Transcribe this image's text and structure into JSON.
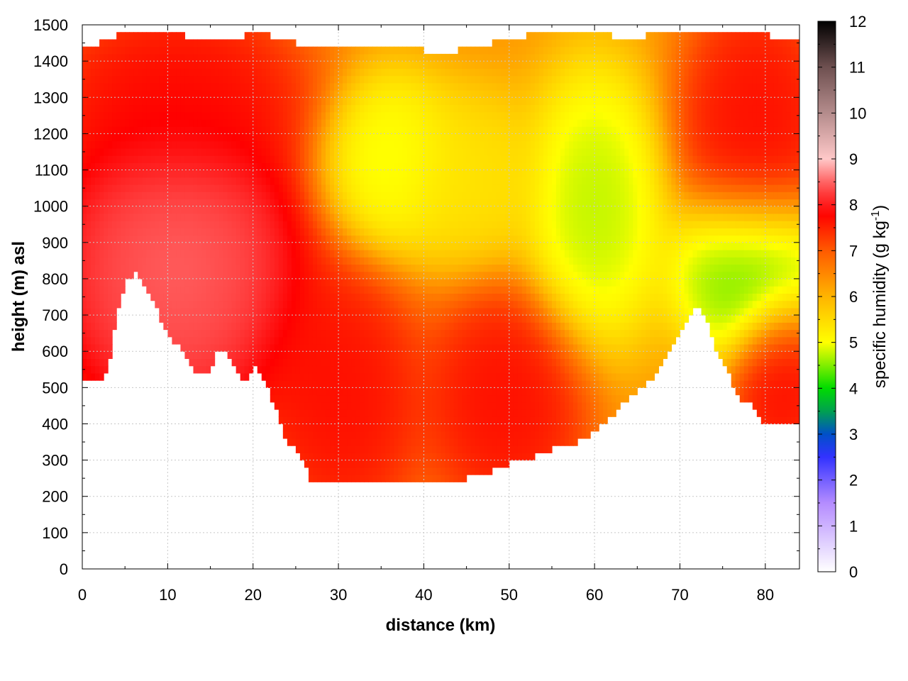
{
  "chart_data": {
    "type": "heatmap",
    "title": "",
    "xlabel": "distance (km)",
    "ylabel": "height (m) asl",
    "colorbar_label_main": "specific humidity (g kg",
    "colorbar_label_sup": "-1",
    "colorbar_label_end": ")",
    "xlim": [
      0,
      84
    ],
    "ylim": [
      0,
      1500
    ],
    "zlim": [
      0,
      12
    ],
    "x_ticks": [
      0,
      10,
      20,
      30,
      40,
      50,
      60,
      70,
      80
    ],
    "x_tick_labels": [
      "0",
      "10",
      "20",
      "30",
      "40",
      "50",
      "60",
      "70",
      "80"
    ],
    "y_ticks": [
      0,
      100,
      200,
      300,
      400,
      500,
      600,
      700,
      800,
      900,
      1000,
      1100,
      1200,
      1300,
      1400,
      1500
    ],
    "y_tick_labels": [
      "0",
      "100",
      "200",
      "300",
      "400",
      "500",
      "600",
      "700",
      "800",
      "900",
      "1000",
      "1100",
      "1200",
      "1300",
      "1400",
      "1500"
    ],
    "z_ticks": [
      0,
      1,
      2,
      3,
      4,
      5,
      6,
      7,
      8,
      9,
      10,
      11,
      12
    ],
    "z_tick_labels": [
      "0",
      "1",
      "2",
      "3",
      "4",
      "5",
      "6",
      "7",
      "8",
      "9",
      "10",
      "11",
      "12"
    ],
    "grid": true,
    "colormap": [
      {
        "value": 0,
        "color": "#ffffff"
      },
      {
        "value": 1.5,
        "color": "#b48cff"
      },
      {
        "value": 2.5,
        "color": "#3232ff"
      },
      {
        "value": 3,
        "color": "#0050c8"
      },
      {
        "value": 3.5,
        "color": "#00a050"
      },
      {
        "value": 4,
        "color": "#00dc00"
      },
      {
        "value": 5,
        "color": "#ffff00"
      },
      {
        "value": 6,
        "color": "#ffb400"
      },
      {
        "value": 7,
        "color": "#ff5a00"
      },
      {
        "value": 7.8,
        "color": "#ff0000"
      },
      {
        "value": 8.4,
        "color": "#ff5050"
      },
      {
        "value": 9,
        "color": "#ffc8c8"
      },
      {
        "value": 10,
        "color": "#b48c8c"
      },
      {
        "value": 11,
        "color": "#6e5050"
      },
      {
        "value": 12,
        "color": "#000000"
      }
    ],
    "ground_profile": {
      "x": [
        0,
        1,
        2,
        3,
        4,
        5,
        6,
        7,
        8,
        9,
        10,
        11,
        12,
        13,
        14,
        15,
        16,
        17,
        18,
        19,
        20,
        21,
        22,
        23,
        24,
        25,
        26,
        27,
        28,
        30,
        32,
        34,
        36,
        38,
        40,
        42,
        44,
        46,
        48,
        50,
        52,
        54,
        56,
        58,
        60,
        62,
        64,
        66,
        68,
        70,
        71,
        72,
        73,
        74,
        75,
        76,
        77,
        78,
        79,
        80,
        81,
        82,
        83,
        84
      ],
      "height": [
        515,
        530,
        512,
        550,
        700,
        790,
        815,
        800,
        760,
        700,
        640,
        620,
        590,
        550,
        530,
        545,
        610,
        595,
        540,
        510,
        560,
        540,
        480,
        420,
        350,
        325,
        290,
        235,
        240,
        250,
        250,
        240,
        238,
        238,
        238,
        235,
        245,
        255,
        270,
        290,
        300,
        320,
        340,
        350,
        380,
        420,
        470,
        510,
        560,
        650,
        700,
        720,
        690,
        620,
        570,
        520,
        470,
        460,
        430,
        400,
        395,
        400,
        400,
        410
      ]
    },
    "top_profile": {
      "x": [
        0,
        2,
        4,
        6,
        8,
        10,
        12,
        14,
        16,
        18,
        20,
        22,
        24,
        26,
        28,
        30,
        32,
        34,
        36,
        38,
        40,
        42,
        44,
        46,
        48,
        50,
        52,
        54,
        56,
        58,
        60,
        62,
        64,
        66,
        68,
        70,
        72,
        74,
        76,
        78,
        80,
        82,
        84
      ],
      "height": [
        1440,
        1450,
        1470,
        1490,
        1480,
        1470,
        1470,
        1460,
        1470,
        1460,
        1480,
        1470,
        1460,
        1440,
        1430,
        1435,
        1440,
        1435,
        1430,
        1430,
        1430,
        1425,
        1430,
        1440,
        1450,
        1460,
        1470,
        1480,
        1475,
        1480,
        1470,
        1470,
        1460,
        1470,
        1470,
        1480,
        1490,
        1470,
        1480,
        1470,
        1480,
        1450,
        1460
      ]
    },
    "features": [
      {
        "name": "dry-upper-left",
        "x": [
          0,
          22
        ],
        "height": [
          1150,
          1450
        ],
        "value": 7.8
      },
      {
        "name": "moist-plume-left",
        "x": [
          0,
          22
        ],
        "height": [
          500,
          1150
        ],
        "value": 8.7
      },
      {
        "name": "moist-core-center-left",
        "x": [
          25,
          36
        ],
        "height": [
          230,
          700
        ],
        "value": 7.8
      },
      {
        "name": "moist-core-center",
        "x": [
          44,
          55
        ],
        "height": [
          270,
          650
        ],
        "value": 7.8
      },
      {
        "name": "dry-pocket-center",
        "x": [
          32,
          40
        ],
        "height": [
          1000,
          1250
        ],
        "value": 4.8
      },
      {
        "name": "dry-pocket-center-2",
        "x": [
          40,
          50
        ],
        "height": [
          950,
          1200
        ],
        "value": 5.3
      },
      {
        "name": "dry-pocket-right",
        "x": [
          56,
          64
        ],
        "height": [
          750,
          1250
        ],
        "value": 4.6
      },
      {
        "name": "dry-pocket-far-right",
        "x": [
          73,
          84
        ],
        "height": [
          700,
          950
        ],
        "value": 4.2
      },
      {
        "name": "moist-upper-right",
        "x": [
          74,
          84
        ],
        "height": [
          1000,
          1450
        ],
        "value": 7.8
      },
      {
        "name": "moist-lower-right",
        "x": [
          80,
          84
        ],
        "height": [
          400,
          650
        ],
        "value": 7.8
      }
    ]
  }
}
